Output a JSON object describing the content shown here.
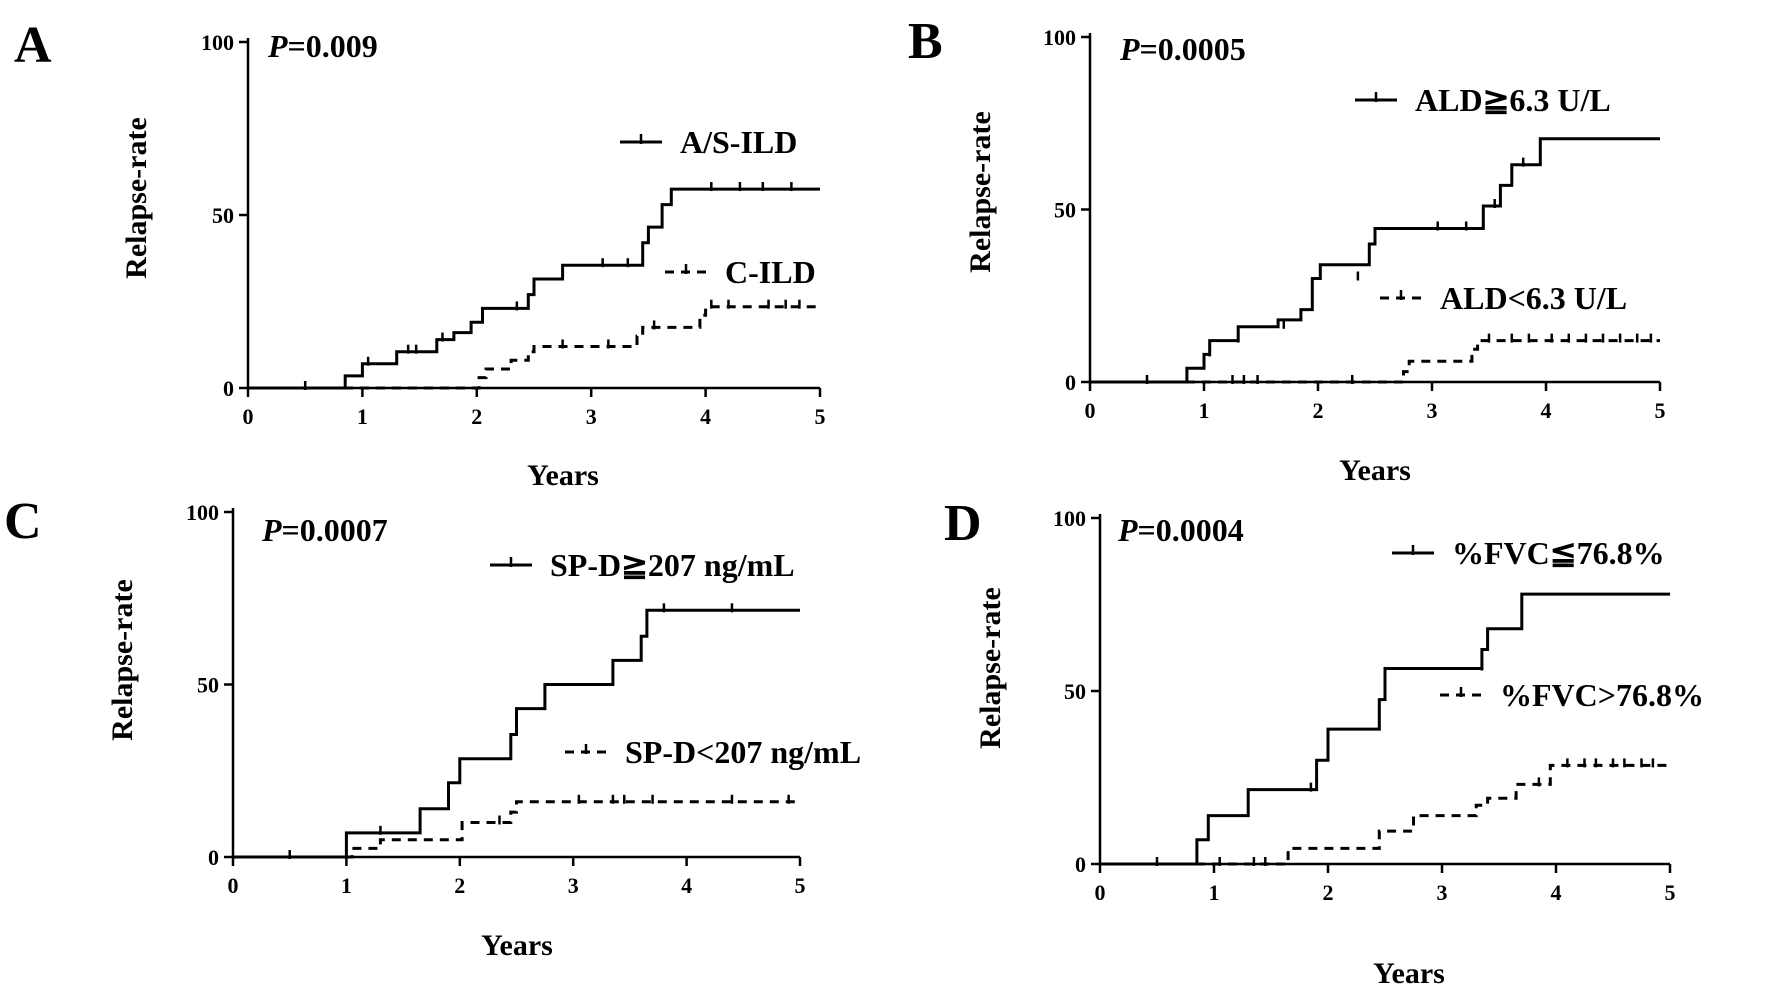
{
  "chart_data": [
    {
      "type": "line",
      "subtype": "kaplan-meier-step",
      "panel": "A",
      "p_label": "P",
      "p_value": "=0.009",
      "xlabel": "Years",
      "ylabel": "Relapse-rate",
      "xlim": [
        0,
        5
      ],
      "ylim": [
        0,
        100
      ],
      "xticks": [
        0,
        1,
        2,
        3,
        4,
        5
      ],
      "yticks": [
        0,
        50,
        100
      ],
      "legend_position": "right",
      "series": [
        {
          "name": "A/S-ILD",
          "style": "solid",
          "x": [
            0,
            0.85,
            0.85,
            1.0,
            1.0,
            1.3,
            1.3,
            1.65,
            1.65,
            1.8,
            1.8,
            1.95,
            1.95,
            2.05,
            2.05,
            2.45,
            2.45,
            2.5,
            2.5,
            2.75,
            2.75,
            3.45,
            3.45,
            3.5,
            3.5,
            3.62,
            3.62,
            3.7,
            3.7,
            5.0
          ],
          "y": [
            0,
            0,
            3.5,
            3.5,
            7,
            7,
            10.5,
            10.5,
            14,
            14,
            16,
            16,
            19,
            19,
            23,
            23,
            27,
            27,
            31.5,
            31.5,
            35.5,
            35.5,
            42,
            42,
            46.5,
            46.5,
            53,
            53,
            57.5,
            57.5
          ],
          "censor_x": [
            0.5,
            1.05,
            1.4,
            1.47,
            1.7,
            2.35,
            3.1,
            3.32,
            4.05,
            4.3,
            4.5,
            4.75
          ],
          "censor_y": [
            0,
            7,
            10.5,
            10.5,
            14,
            23,
            35.5,
            35.5,
            57.5,
            57.5,
            57.5,
            57.5
          ]
        },
        {
          "name": "C-ILD",
          "style": "dashed",
          "x": [
            0,
            2.02,
            2.02,
            2.08,
            2.08,
            2.3,
            2.3,
            2.45,
            2.45,
            2.5,
            2.5,
            3.4,
            3.4,
            3.45,
            3.45,
            3.95,
            3.95,
            4.0,
            4.0,
            5.0
          ],
          "y": [
            0,
            0,
            3,
            3,
            5.5,
            5.5,
            8,
            8,
            10.5,
            10.5,
            12,
            12,
            15,
            15,
            17.5,
            17.5,
            21,
            21,
            23.5,
            23.5
          ],
          "censor_x": [
            2.75,
            3.15,
            3.55,
            4.05,
            4.2,
            4.55,
            4.7,
            4.82
          ],
          "censor_y": [
            12,
            12,
            17.5,
            23.5,
            23.5,
            23.5,
            23.5,
            23.5
          ]
        }
      ]
    },
    {
      "type": "line",
      "subtype": "kaplan-meier-step",
      "panel": "B",
      "p_label": "P",
      "p_value": "=0.0005",
      "xlabel": "Years",
      "ylabel": "Relapse-rate",
      "xlim": [
        0,
        5
      ],
      "ylim": [
        0,
        100
      ],
      "xticks": [
        0,
        1,
        2,
        3,
        4,
        5
      ],
      "yticks": [
        0,
        50,
        100
      ],
      "legend_position": "right",
      "series": [
        {
          "name": "ALD≧6.3 U/L",
          "style": "solid",
          "x": [
            0,
            0.85,
            0.85,
            1.0,
            1.0,
            1.05,
            1.05,
            1.3,
            1.3,
            1.65,
            1.65,
            1.85,
            1.85,
            1.95,
            1.95,
            2.02,
            2.02,
            2.45,
            2.45,
            2.5,
            2.5,
            3.45,
            3.45,
            3.6,
            3.6,
            3.7,
            3.7,
            3.95,
            3.95,
            5.0
          ],
          "y": [
            0,
            0,
            4,
            4,
            8,
            8,
            12,
            12,
            16,
            16,
            18,
            18,
            21,
            21,
            30,
            30,
            34,
            34,
            40,
            40,
            44.5,
            44.5,
            51,
            51,
            57,
            57,
            63,
            63,
            70.5,
            70.5
          ],
          "censor_x": [
            0.5,
            1.05,
            1.3,
            1.7,
            2.35,
            3.05,
            3.3,
            3.55,
            3.8
          ],
          "censor_y": [
            0,
            8,
            12,
            16,
            30,
            44.5,
            44.5,
            51,
            63
          ]
        },
        {
          "name": "ALD<6.3 U/L",
          "style": "dashed",
          "x": [
            0,
            2.75,
            2.75,
            2.8,
            2.8,
            3.35,
            3.35,
            3.4,
            3.4,
            5.0
          ],
          "y": [
            0,
            0,
            3,
            3,
            6,
            6,
            9.5,
            9.5,
            12,
            12
          ],
          "censor_x": [
            1.25,
            1.35,
            1.47,
            2.3,
            3.5,
            3.7,
            3.85,
            4.05,
            4.2,
            4.35,
            4.5,
            4.65,
            4.8,
            4.92
          ],
          "censor_y": [
            0,
            0,
            0,
            0,
            12,
            12,
            12,
            12,
            12,
            12,
            12,
            12,
            12,
            12
          ]
        }
      ]
    },
    {
      "type": "line",
      "subtype": "kaplan-meier-step",
      "panel": "C",
      "p_label": "P",
      "p_value": "=0.0007",
      "xlabel": "Years",
      "ylabel": "Relapse-rate",
      "xlim": [
        0,
        5
      ],
      "ylim": [
        0,
        100
      ],
      "xticks": [
        0,
        1,
        2,
        3,
        4,
        5
      ],
      "yticks": [
        0,
        50,
        100
      ],
      "legend_position": "right",
      "series": [
        {
          "name": "SP-D≧207 ng/mL",
          "style": "solid",
          "x": [
            0,
            1.0,
            1.0,
            1.65,
            1.65,
            1.9,
            1.9,
            2.0,
            2.0,
            2.45,
            2.45,
            2.5,
            2.5,
            2.75,
            2.75,
            3.35,
            3.35,
            3.6,
            3.6,
            3.65,
            3.65,
            3.72,
            3.72,
            5.0
          ],
          "y": [
            0,
            0,
            7,
            7,
            14,
            14,
            21.5,
            21.5,
            28.5,
            28.5,
            35.5,
            35.5,
            43,
            43,
            50,
            50,
            57,
            57,
            64,
            64,
            71.5,
            71.5,
            71.5,
            71.5
          ],
          "censor_x": [
            0.5,
            1.3,
            3.8,
            4.4
          ],
          "censor_y": [
            0,
            7,
            71.5,
            71.5
          ]
        },
        {
          "name": "SP-D<207 ng/mL",
          "style": "dashed",
          "x": [
            0,
            1.05,
            1.05,
            1.3,
            1.3,
            2.02,
            2.02,
            2.45,
            2.45,
            2.5,
            2.5,
            5.0
          ],
          "y": [
            0,
            0,
            2.5,
            2.5,
            5,
            5,
            10,
            10,
            13,
            13,
            16,
            16
          ],
          "censor_x": [
            2.35,
            3.05,
            3.35,
            3.45,
            3.7,
            4.4,
            4.9
          ],
          "censor_y": [
            10,
            16,
            16,
            16,
            16,
            16,
            16
          ]
        }
      ]
    },
    {
      "type": "line",
      "subtype": "kaplan-meier-step",
      "panel": "D",
      "p_label": "P",
      "p_value": "=0.0004",
      "xlabel": "Years",
      "ylabel": "Relapse-rate",
      "xlim": [
        0,
        5
      ],
      "ylim": [
        0,
        100
      ],
      "xticks": [
        0,
        1,
        2,
        3,
        4,
        5
      ],
      "yticks": [
        0,
        50,
        100
      ],
      "legend_position": "right",
      "series": [
        {
          "name": "%FVC≦76.8%",
          "style": "solid",
          "x": [
            0,
            0.85,
            0.85,
            0.95,
            0.95,
            1.3,
            1.3,
            1.9,
            1.9,
            2.0,
            2.0,
            2.45,
            2.45,
            2.5,
            2.5,
            3.35,
            3.35,
            3.4,
            3.4,
            3.7,
            3.7,
            5.0
          ],
          "y": [
            0,
            0,
            7,
            7,
            14,
            14,
            21.5,
            21.5,
            30,
            30,
            39,
            39,
            47.5,
            47.5,
            56.5,
            56.5,
            62,
            62,
            68,
            68,
            78,
            78
          ],
          "censor_x": [
            0.5,
            1.85,
            3.35
          ],
          "censor_y": [
            0,
            21.5,
            56.5
          ]
        },
        {
          "name": "%FVC>76.8%",
          "style": "dashed",
          "x": [
            0,
            1.65,
            1.65,
            2.45,
            2.45,
            2.75,
            2.75,
            3.3,
            3.3,
            3.4,
            3.4,
            3.65,
            3.65,
            3.95,
            3.95,
            5.0
          ],
          "y": [
            0,
            0,
            4.5,
            4.5,
            9.5,
            9.5,
            14,
            14,
            17,
            17,
            19,
            19,
            23,
            23,
            28.5,
            28.5
          ],
          "censor_x": [
            1.05,
            1.35,
            1.45,
            3.85,
            4.1,
            4.25,
            4.35,
            4.5,
            4.6,
            4.75,
            4.85
          ],
          "censor_y": [
            0,
            0,
            0,
            23,
            28.5,
            28.5,
            28.5,
            28.5,
            28.5,
            28.5,
            28.5
          ]
        }
      ]
    }
  ]
}
